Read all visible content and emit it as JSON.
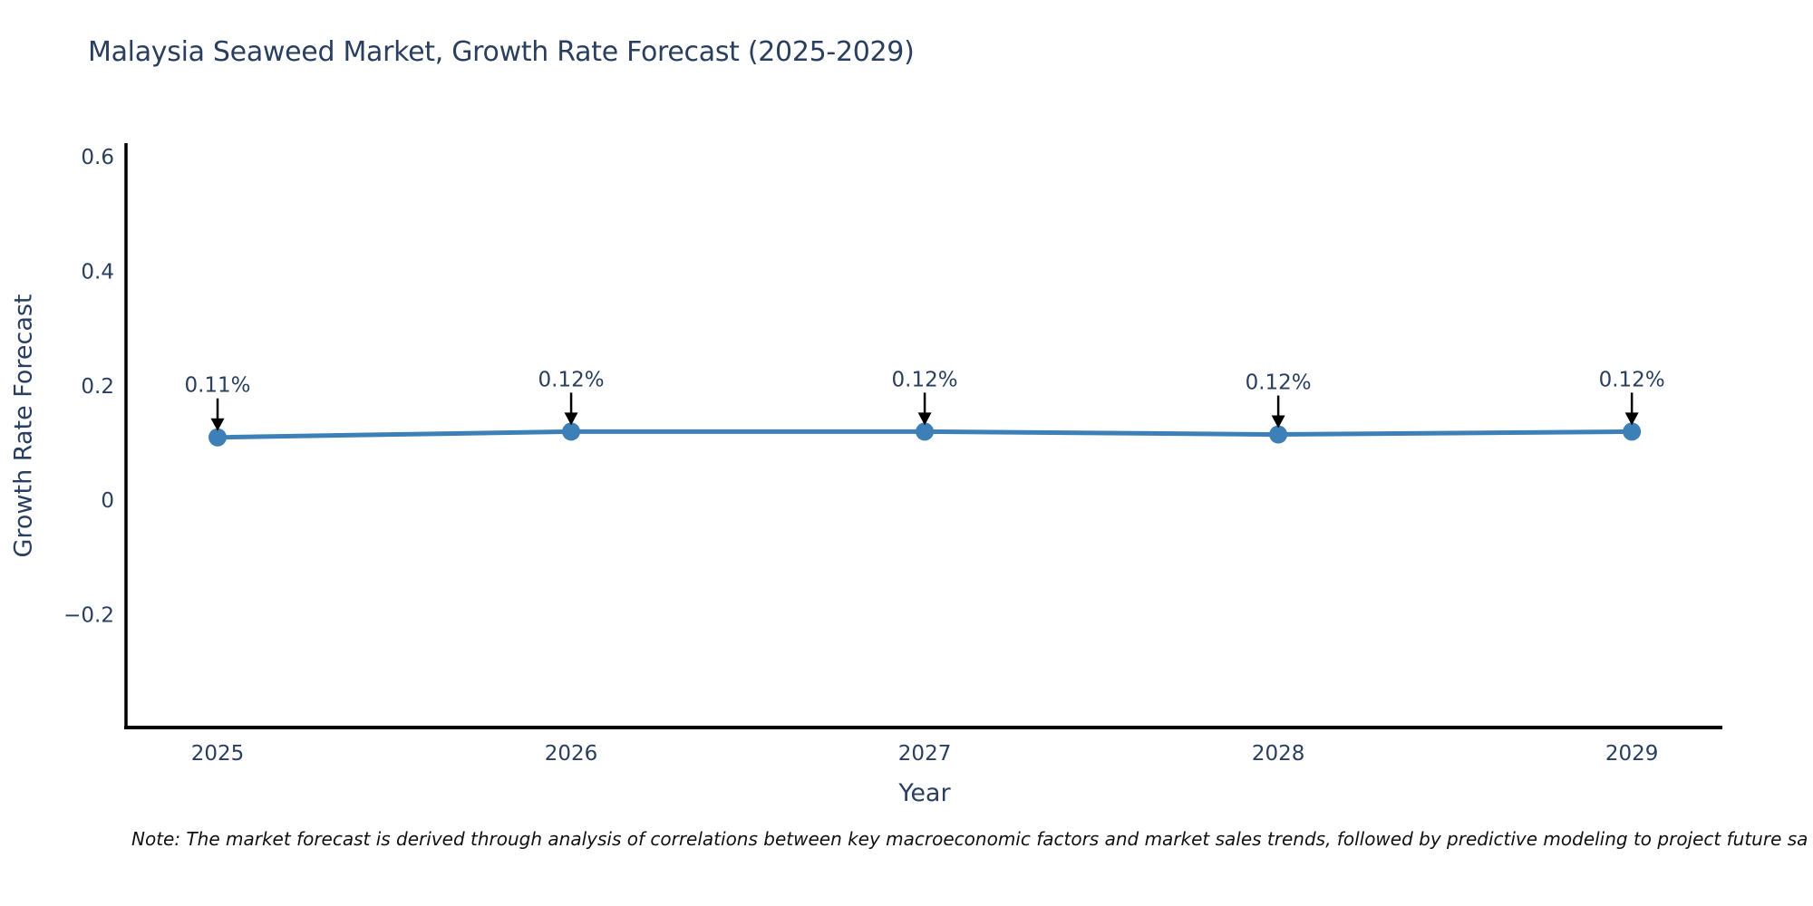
{
  "chart": {
    "title": "Malaysia Seaweed Market, Growth Rate Forecast (2025-2029)",
    "xlabel": "Year",
    "ylabel": "Growth Rate Forecast"
  },
  "note": {
    "text": "Note: The market forecast is derived through analysis of correlations between key macroeconomic factors and market sales trends, followed by predictive modeling to project future sa"
  },
  "chart_data": {
    "type": "line",
    "title": "Malaysia Seaweed Market, Growth Rate Forecast (2025-2029)",
    "xlabel": "Year",
    "ylabel": "Growth Rate Forecast",
    "x": [
      2025,
      2026,
      2027,
      2028,
      2029
    ],
    "series": [
      {
        "name": "Growth Rate Forecast",
        "values": [
          0.11,
          0.12,
          0.12,
          0.115,
          0.12
        ]
      }
    ],
    "data_labels": [
      "0.11%",
      "0.12%",
      "0.12%",
      "0.12%",
      "0.12%"
    ],
    "xtick_labels": [
      "2025",
      "2026",
      "2027",
      "2028",
      "2029"
    ],
    "yticks": [
      0.6,
      0.4,
      0.2,
      0,
      -0.2
    ],
    "ytick_labels": [
      "0.6",
      "0.4",
      "0.2",
      "0",
      "−0.2"
    ],
    "xlim": [
      2024.741,
      2029.256
    ],
    "ylim": [
      -0.3968,
      0.6238
    ],
    "grid": false,
    "legend": "none",
    "line_color": "#3d80b8",
    "marker_color": "#3d80b8",
    "axis_line_color": "#000000",
    "tick_label_color": "#2a3f5f",
    "annotation_text_color": "#2a3f5f",
    "annotation_arrow_color": "#000000"
  }
}
